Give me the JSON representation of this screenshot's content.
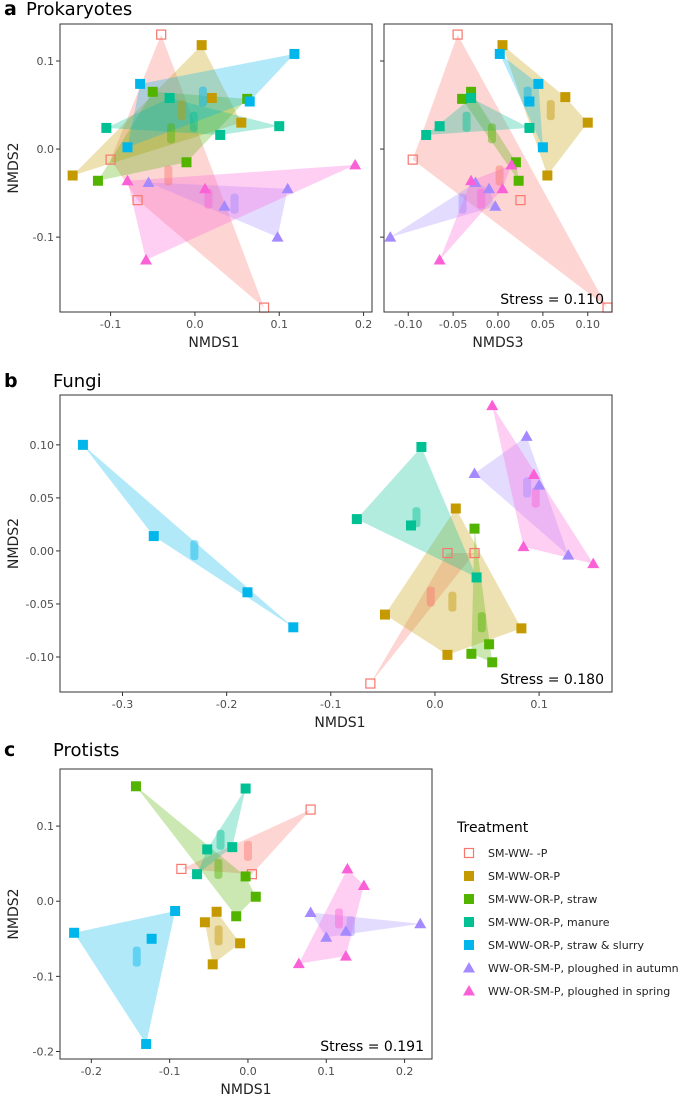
{
  "panel_letters": {
    "a": "a",
    "b": "b",
    "c": "c"
  },
  "panel_titles": {
    "prokaryotes": "Prokaryotes",
    "fungi": "Fungi",
    "protists": "Protists"
  },
  "legend": {
    "title": "Treatment",
    "items": [
      {
        "label": "SM-WW-      -P",
        "color": "#f8766d",
        "shape": "open-square"
      },
      {
        "label": "SM-WW-OR-P",
        "color": "#c49a00",
        "shape": "square"
      },
      {
        "label": "SM-WW-OR-P, straw",
        "color": "#53b400",
        "shape": "square"
      },
      {
        "label": "SM-WW-OR-P, manure",
        "color": "#00c094",
        "shape": "square"
      },
      {
        "label": "SM-WW-OR-P, straw & slurry",
        "color": "#00b6eb",
        "shape": "square"
      },
      {
        "label": "WW-OR-SM-P, ploughed in autumn",
        "color": "#a58aff",
        "shape": "triangle"
      },
      {
        "label": "WW-OR-SM-P, ploughed in spring",
        "color": "#fb61d7",
        "shape": "triangle"
      }
    ]
  },
  "chart_data": [
    {
      "id": "prok12",
      "type": "scatter",
      "subtype": "nmds-ordination-hulls",
      "title": "Prokaryotes",
      "xlabel": "NMDS1",
      "ylabel": "NMDS2",
      "xlim": [
        -0.16,
        0.21
      ],
      "ylim": [
        -0.185,
        0.142
      ],
      "xticks": [
        -0.1,
        0.0,
        0.1,
        0.2
      ],
      "xtick_labels": [
        "-0.1",
        "0.0",
        "0.1",
        "0.2"
      ],
      "yticks": [
        -0.1,
        0.0,
        0.1
      ],
      "ytick_labels": [
        "-0.1",
        "0.0",
        "0.1"
      ],
      "stress": "",
      "series": [
        {
          "name": "SM-WW-      -P",
          "points": [
            [
              -0.04,
              0.13
            ],
            [
              -0.1,
              -0.012
            ],
            [
              -0.068,
              -0.058
            ],
            [
              0.082,
              -0.18
            ]
          ]
        },
        {
          "name": "SM-WW-OR-P",
          "points": [
            [
              0.008,
              0.118
            ],
            [
              -0.145,
              -0.03
            ],
            [
              0.02,
              0.058
            ],
            [
              0.055,
              0.03
            ]
          ]
        },
        {
          "name": "SM-WW-OR-P, straw",
          "points": [
            [
              -0.05,
              0.065
            ],
            [
              -0.115,
              -0.036
            ],
            [
              -0.01,
              -0.015
            ],
            [
              0.062,
              0.057
            ]
          ]
        },
        {
          "name": "SM-WW-OR-P, manure",
          "points": [
            [
              -0.105,
              0.024
            ],
            [
              -0.03,
              0.058
            ],
            [
              0.03,
              0.016
            ],
            [
              0.1,
              0.026
            ]
          ]
        },
        {
          "name": "SM-WW-OR-P, straw & slurry",
          "points": [
            [
              -0.065,
              0.074
            ],
            [
              -0.08,
              0.002
            ],
            [
              0.065,
              0.054
            ],
            [
              0.118,
              0.108
            ]
          ]
        },
        {
          "name": "WW-OR-SM-P, ploughed in autumn",
          "points": [
            [
              -0.055,
              -0.038
            ],
            [
              0.035,
              -0.065
            ],
            [
              0.11,
              -0.045
            ],
            [
              0.098,
              -0.1
            ]
          ]
        },
        {
          "name": "WW-OR-SM-P, ploughed in spring",
          "points": [
            [
              -0.08,
              -0.036
            ],
            [
              0.012,
              -0.045
            ],
            [
              0.19,
              -0.018
            ],
            [
              -0.058,
              -0.126
            ]
          ]
        }
      ]
    },
    {
      "id": "prok32",
      "type": "scatter",
      "subtype": "nmds-ordination-hulls",
      "title": "",
      "xlabel": "NMDS3",
      "ylabel": "",
      "xlim": [
        -0.127,
        0.127
      ],
      "ylim": [
        -0.185,
        0.142
      ],
      "xticks": [
        -0.1,
        -0.05,
        0.0,
        0.05,
        0.1
      ],
      "xtick_labels": [
        "-0.10",
        "-0.05",
        "0.00",
        "0.05",
        "0.10"
      ],
      "yticks": [
        -0.1,
        0.0,
        0.1
      ],
      "ytick_labels": [],
      "stress": "Stress = 0.110",
      "series": [
        {
          "name": "SM-WW-      -P",
          "points": [
            [
              -0.045,
              0.13
            ],
            [
              -0.095,
              -0.012
            ],
            [
              0.025,
              -0.058
            ],
            [
              0.122,
              -0.18
            ]
          ]
        },
        {
          "name": "SM-WW-OR-P",
          "points": [
            [
              0.005,
              0.118
            ],
            [
              0.075,
              0.059
            ],
            [
              0.1,
              0.03
            ],
            [
              0.055,
              -0.03
            ]
          ]
        },
        {
          "name": "SM-WW-OR-P, straw",
          "points": [
            [
              -0.03,
              0.065
            ],
            [
              -0.04,
              0.057
            ],
            [
              0.02,
              -0.015
            ],
            [
              0.023,
              -0.036
            ]
          ]
        },
        {
          "name": "SM-WW-OR-P, manure",
          "points": [
            [
              -0.08,
              0.016
            ],
            [
              -0.065,
              0.026
            ],
            [
              -0.03,
              0.058
            ],
            [
              0.035,
              0.024
            ]
          ]
        },
        {
          "name": "SM-WW-OR-P, straw & slurry",
          "points": [
            [
              0.002,
              0.108
            ],
            [
              0.045,
              0.074
            ],
            [
              0.035,
              0.054
            ],
            [
              0.05,
              0.002
            ]
          ]
        },
        {
          "name": "WW-OR-SM-P, ploughed in autumn",
          "points": [
            [
              -0.12,
              -0.1
            ],
            [
              -0.025,
              -0.038
            ],
            [
              -0.01,
              -0.045
            ],
            [
              -0.003,
              -0.065
            ]
          ]
        },
        {
          "name": "WW-OR-SM-P, ploughed in spring",
          "points": [
            [
              -0.065,
              -0.126
            ],
            [
              -0.03,
              -0.036
            ],
            [
              0.005,
              -0.045
            ],
            [
              0.015,
              -0.018
            ]
          ]
        }
      ]
    },
    {
      "id": "fungi",
      "type": "scatter",
      "subtype": "nmds-ordination-hulls",
      "title": "Fungi",
      "xlabel": "NMDS1",
      "ylabel": "NMDS2",
      "xlim": [
        -0.36,
        0.17
      ],
      "ylim": [
        -0.133,
        0.147
      ],
      "xticks": [
        -0.3,
        -0.2,
        -0.1,
        0.0,
        0.1
      ],
      "xtick_labels": [
        "-0.3",
        "-0.2",
        "-0.1",
        "0.0",
        "0.1"
      ],
      "yticks": [
        -0.1,
        -0.05,
        0.0,
        0.05,
        0.1
      ],
      "ytick_labels": [
        "-0.10",
        "-0.05",
        "0.00",
        "0.05",
        "0.10"
      ],
      "stress": "Stress = 0.180",
      "series": [
        {
          "name": "SM-WW-      -P",
          "points": [
            [
              -0.062,
              -0.125
            ],
            [
              0.012,
              -0.002
            ],
            [
              0.038,
              -0.002
            ]
          ]
        },
        {
          "name": "SM-WW-OR-P",
          "points": [
            [
              -0.048,
              -0.06
            ],
            [
              0.02,
              0.04
            ],
            [
              0.012,
              -0.098
            ],
            [
              0.083,
              -0.073
            ]
          ]
        },
        {
          "name": "SM-WW-OR-P, straw",
          "points": [
            [
              0.038,
              0.021
            ],
            [
              0.035,
              -0.097
            ],
            [
              0.052,
              -0.088
            ],
            [
              0.055,
              -0.105
            ]
          ]
        },
        {
          "name": "SM-WW-OR-P, manure",
          "points": [
            [
              -0.075,
              0.03
            ],
            [
              -0.023,
              0.024
            ],
            [
              -0.013,
              0.098
            ],
            [
              0.04,
              -0.025
            ]
          ]
        },
        {
          "name": "SM-WW-OR-P, straw & slurry",
          "points": [
            [
              -0.338,
              0.1
            ],
            [
              -0.27,
              0.014
            ],
            [
              -0.18,
              -0.039
            ],
            [
              -0.136,
              -0.072
            ]
          ]
        },
        {
          "name": "WW-OR-SM-P, ploughed in autumn",
          "points": [
            [
              0.088,
              0.108
            ],
            [
              0.038,
              0.073
            ],
            [
              0.128,
              -0.004
            ],
            [
              0.1,
              0.062
            ]
          ]
        },
        {
          "name": "WW-OR-SM-P, ploughed in spring",
          "points": [
            [
              0.055,
              0.137
            ],
            [
              0.095,
              0.072
            ],
            [
              0.085,
              0.004
            ],
            [
              0.152,
              -0.012
            ]
          ]
        }
      ]
    },
    {
      "id": "protists",
      "type": "scatter",
      "subtype": "nmds-ordination-hulls",
      "title": "Protists",
      "xlabel": "NMDS1",
      "ylabel": "NMDS2",
      "xlim": [
        -0.24,
        0.235
      ],
      "ylim": [
        -0.21,
        0.176
      ],
      "xticks": [
        -0.2,
        -0.1,
        0.0,
        0.1,
        0.2
      ],
      "xtick_labels": [
        "-0.2",
        "-0.1",
        "0.0",
        "0.1",
        "0.2"
      ],
      "yticks": [
        -0.2,
        -0.1,
        0.0,
        0.1
      ],
      "ytick_labels": [
        "-0.2",
        "-0.1",
        "0.0",
        "0.1"
      ],
      "stress": "Stress = 0.191",
      "series": [
        {
          "name": "SM-WW-      -P",
          "points": [
            [
              -0.085,
              0.043
            ],
            [
              0.08,
              0.122
            ],
            [
              0.005,
              0.036
            ]
          ]
        },
        {
          "name": "SM-WW-OR-P",
          "points": [
            [
              -0.055,
              -0.028
            ],
            [
              -0.04,
              -0.014
            ],
            [
              -0.045,
              -0.084
            ],
            [
              -0.01,
              -0.056
            ]
          ]
        },
        {
          "name": "SM-WW-OR-P, straw",
          "points": [
            [
              -0.143,
              0.153
            ],
            [
              -0.003,
              0.033
            ],
            [
              -0.015,
              -0.02
            ],
            [
              0.01,
              0.006
            ]
          ]
        },
        {
          "name": "SM-WW-OR-P, manure",
          "points": [
            [
              -0.003,
              0.15
            ],
            [
              -0.052,
              0.069
            ],
            [
              -0.065,
              0.036
            ],
            [
              -0.02,
              0.072
            ]
          ]
        },
        {
          "name": "SM-WW-OR-P, straw & slurry",
          "points": [
            [
              -0.222,
              -0.042
            ],
            [
              -0.123,
              -0.05
            ],
            [
              -0.093,
              -0.013
            ],
            [
              -0.13,
              -0.19
            ]
          ]
        },
        {
          "name": "WW-OR-SM-P, ploughed in autumn",
          "points": [
            [
              0.08,
              -0.015
            ],
            [
              0.1,
              -0.048
            ],
            [
              0.125,
              -0.04
            ],
            [
              0.22,
              -0.03
            ]
          ]
        },
        {
          "name": "WW-OR-SM-P, ploughed in spring",
          "points": [
            [
              0.065,
              -0.083
            ],
            [
              0.127,
              0.043
            ],
            [
              0.148,
              0.021
            ],
            [
              0.125,
              -0.073
            ]
          ]
        }
      ]
    }
  ]
}
